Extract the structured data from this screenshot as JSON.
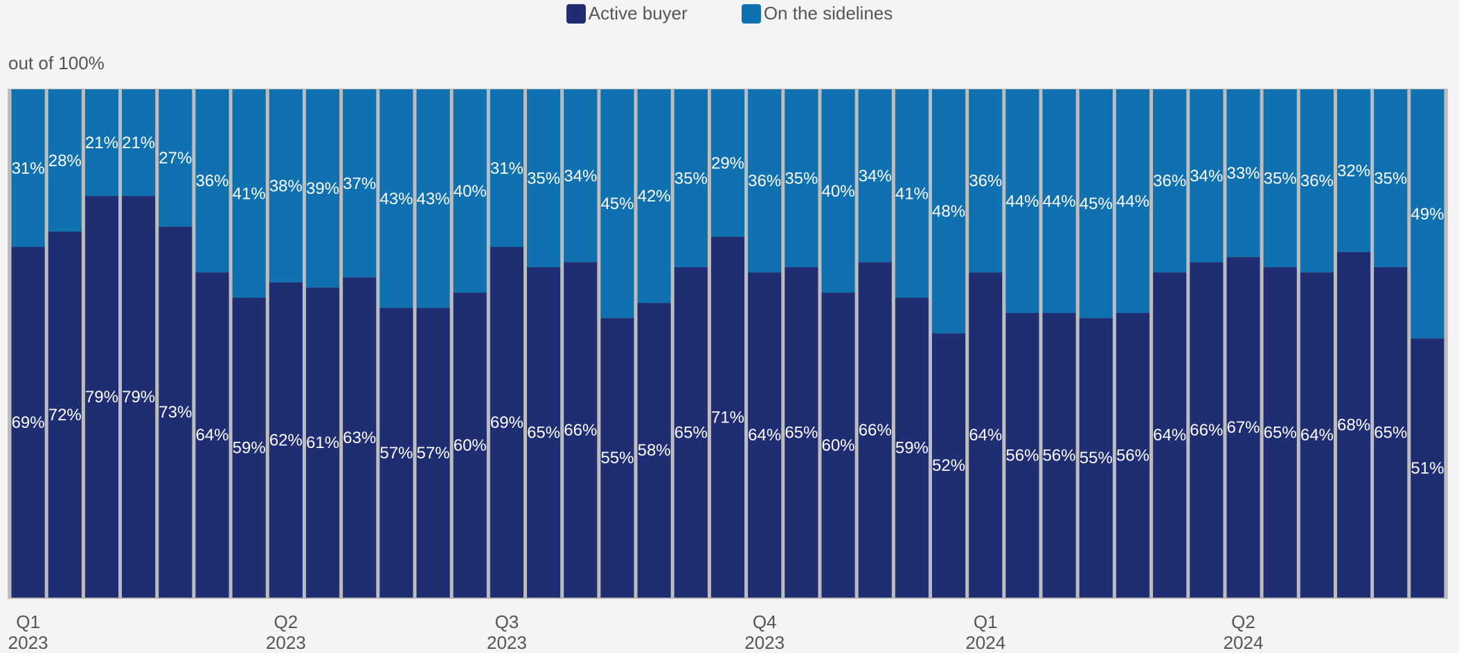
{
  "chart_data": {
    "type": "bar",
    "stacked": true,
    "y_unit_label": "out of 100%",
    "ylim": [
      0,
      100
    ],
    "legend_position": "top-center",
    "grid": false,
    "colors": {
      "active": "#1f2d73",
      "sidelines": "#1071b1",
      "background": "#f4f4f4",
      "separator": "#bdbdbd"
    },
    "series": [
      {
        "name": "Active buyer",
        "color": "#1f2d73",
        "values": [
          69,
          72,
          79,
          79,
          73,
          64,
          59,
          62,
          61,
          63,
          57,
          57,
          60,
          69,
          65,
          66,
          55,
          58,
          65,
          71,
          64,
          65,
          60,
          66,
          59,
          52,
          64,
          56,
          56,
          55,
          56,
          64,
          66,
          67,
          65,
          64,
          68,
          65,
          51
        ]
      },
      {
        "name": "On the sidelines",
        "color": "#1071b1",
        "values": [
          31,
          28,
          21,
          21,
          27,
          36,
          41,
          38,
          39,
          37,
          43,
          43,
          40,
          31,
          35,
          34,
          45,
          42,
          35,
          29,
          36,
          35,
          40,
          34,
          41,
          48,
          36,
          44,
          44,
          45,
          44,
          36,
          34,
          33,
          35,
          36,
          32,
          35,
          49
        ]
      }
    ],
    "x_ticks": [
      {
        "index": 0,
        "quarter": "Q1",
        "year": "2023"
      },
      {
        "index": 7,
        "quarter": "Q2",
        "year": "2023"
      },
      {
        "index": 13,
        "quarter": "Q3",
        "year": "2023"
      },
      {
        "index": 20,
        "quarter": "Q4",
        "year": "2023"
      },
      {
        "index": 26,
        "quarter": "Q1",
        "year": "2024"
      },
      {
        "index": 33,
        "quarter": "Q2",
        "year": "2024"
      }
    ]
  }
}
